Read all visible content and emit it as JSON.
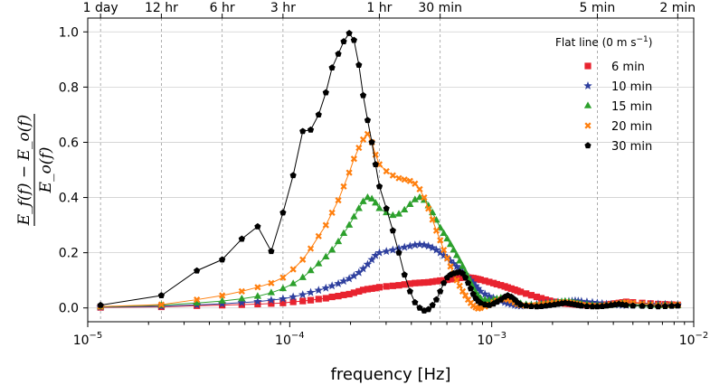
{
  "chart_data": {
    "type": "line",
    "xscale": "log",
    "xlim": [
      1e-05,
      0.01
    ],
    "ylim": [
      -0.05,
      1.05
    ],
    "xlabel": "frequency [Hz]",
    "ylabel_numerator": "E_f(f) − E_o(f)",
    "ylabel_denominator": "E_o(f)",
    "x_tick_labels": [
      {
        "value": 1e-05,
        "base": "10",
        "exp": "−5"
      },
      {
        "value": 0.0001,
        "base": "10",
        "exp": "−4"
      },
      {
        "value": 0.001,
        "base": "10",
        "exp": "−3"
      },
      {
        "value": 0.01,
        "base": "10",
        "exp": "−2"
      }
    ],
    "y_ticks": [
      0.0,
      0.2,
      0.4,
      0.6,
      0.8,
      1.0
    ],
    "y_tick_labels": [
      "0.0",
      "0.2",
      "0.4",
      "0.6",
      "0.8",
      "1.0"
    ],
    "top_axis": [
      {
        "label": "1 day",
        "value": 1.1574e-05
      },
      {
        "label": "12 hr",
        "value": 2.3148e-05
      },
      {
        "label": "6 hr",
        "value": 4.6296e-05
      },
      {
        "label": "3 hr",
        "value": 9.2593e-05
      },
      {
        "label": "1 hr",
        "value": 0.00027778
      },
      {
        "label": "30 min",
        "value": 0.00055556
      },
      {
        "label": "5 min",
        "value": 0.0033333
      },
      {
        "label": "2 min",
        "value": 0.0083333
      }
    ],
    "grid": "horizontal solid, vertical dashed at top-axis periods",
    "legend": {
      "title": "Flat line (0 m s",
      "title_sup": "−1",
      "title_close": ")",
      "placement": "top-right"
    },
    "series": [
      {
        "name": "6 min",
        "color": "#e8232f",
        "marker": "square",
        "x": [
          1.1574e-05,
          2.3148e-05,
          3.47e-05,
          4.63e-05,
          5.79e-05,
          6.94e-05,
          8.1e-05,
          9.26e-05,
          0.000104,
          0.000116,
          0.000127,
          0.000139,
          0.000151,
          0.000162,
          0.000174,
          0.000185,
          0.000197,
          0.000208,
          0.00022,
          0.000231,
          0.000243,
          0.000255,
          0.000266,
          0.000278,
          0.000301,
          0.000324,
          0.000347,
          0.00037,
          0.000394,
          0.000417,
          0.00044,
          0.000463,
          0.000486,
          0.000509,
          0.000532,
          0.000556,
          0.000579,
          0.000602,
          0.000625,
          0.000648,
          0.000671,
          0.000694,
          0.000718,
          0.000741,
          0.000764,
          0.000787,
          0.00081,
          0.000833,
          0.000856,
          0.00088,
          0.000926,
          0.000972,
          0.00102,
          0.00106,
          0.00111,
          0.00116,
          0.0012,
          0.00125,
          0.0013,
          0.00134,
          0.00139,
          0.00148,
          0.00157,
          0.00167,
          0.00176,
          0.00185,
          0.00194,
          0.00204,
          0.00213,
          0.00222,
          0.00231,
          0.00241,
          0.0025,
          0.00259,
          0.00268,
          0.00278,
          0.00296,
          0.00315,
          0.00333,
          0.00352,
          0.0037,
          0.00389,
          0.00407,
          0.00426,
          0.00444,
          0.00463,
          0.005,
          0.00556,
          0.00611,
          0.00667,
          0.00722,
          0.00778,
          0.00833
        ],
        "y": [
          0.002,
          0.004,
          0.008,
          0.01,
          0.012,
          0.014,
          0.016,
          0.018,
          0.022,
          0.025,
          0.028,
          0.032,
          0.035,
          0.04,
          0.043,
          0.047,
          0.05,
          0.055,
          0.06,
          0.065,
          0.068,
          0.07,
          0.072,
          0.075,
          0.078,
          0.08,
          0.082,
          0.085,
          0.088,
          0.09,
          0.091,
          0.092,
          0.093,
          0.095,
          0.097,
          0.099,
          0.1,
          0.102,
          0.104,
          0.106,
          0.108,
          0.109,
          0.11,
          0.111,
          0.11,
          0.109,
          0.108,
          0.106,
          0.104,
          0.102,
          0.098,
          0.094,
          0.09,
          0.086,
          0.082,
          0.078,
          0.074,
          0.07,
          0.066,
          0.062,
          0.058,
          0.052,
          0.046,
          0.04,
          0.035,
          0.03,
          0.026,
          0.022,
          0.02,
          0.018,
          0.016,
          0.015,
          0.014,
          0.013,
          0.012,
          0.011,
          0.01,
          0.01,
          0.01,
          0.011,
          0.012,
          0.014,
          0.016,
          0.018,
          0.02,
          0.022,
          0.02,
          0.018,
          0.016,
          0.014,
          0.013,
          0.012,
          0.011
        ]
      },
      {
        "name": "10 min",
        "color": "#2e3f9e",
        "marker": "star",
        "x": [
          1.1574e-05,
          2.3148e-05,
          3.47e-05,
          4.63e-05,
          5.79e-05,
          6.94e-05,
          8.1e-05,
          9.26e-05,
          0.000104,
          0.000116,
          0.000127,
          0.000139,
          0.000151,
          0.000162,
          0.000174,
          0.000185,
          0.000197,
          0.000208,
          0.00022,
          0.000231,
          0.000243,
          0.000255,
          0.000266,
          0.000278,
          0.000301,
          0.000324,
          0.000347,
          0.00037,
          0.000394,
          0.000417,
          0.00044,
          0.000463,
          0.000486,
          0.000509,
          0.000532,
          0.000556,
          0.000579,
          0.000602,
          0.000625,
          0.000648,
          0.000671,
          0.000694,
          0.000718,
          0.000741,
          0.000764,
          0.000787,
          0.00081,
          0.000833,
          0.000856,
          0.00088,
          0.000926,
          0.000972,
          0.00102,
          0.00106,
          0.00111,
          0.00116,
          0.0012,
          0.00125,
          0.0013,
          0.00134,
          0.00139,
          0.00148,
          0.00157,
          0.00167,
          0.00176,
          0.00185,
          0.00194,
          0.00204,
          0.00213,
          0.00222,
          0.00231,
          0.00241,
          0.0025,
          0.00259,
          0.00268,
          0.00278,
          0.00296,
          0.00315,
          0.00333,
          0.00352,
          0.0037,
          0.00389,
          0.00407,
          0.00426,
          0.00444,
          0.00463,
          0.005,
          0.00556,
          0.00611,
          0.00667,
          0.00722,
          0.00778,
          0.00833
        ],
        "y": [
          0.003,
          0.006,
          0.011,
          0.015,
          0.019,
          0.023,
          0.028,
          0.033,
          0.04,
          0.048,
          0.056,
          0.064,
          0.072,
          0.08,
          0.088,
          0.097,
          0.106,
          0.116,
          0.128,
          0.142,
          0.158,
          0.175,
          0.19,
          0.2,
          0.205,
          0.21,
          0.215,
          0.22,
          0.224,
          0.228,
          0.23,
          0.228,
          0.224,
          0.218,
          0.21,
          0.2,
          0.19,
          0.18,
          0.17,
          0.16,
          0.15,
          0.14,
          0.13,
          0.12,
          0.11,
          0.1,
          0.09,
          0.08,
          0.07,
          0.06,
          0.05,
          0.042,
          0.036,
          0.03,
          0.025,
          0.02,
          0.016,
          0.013,
          0.01,
          0.008,
          0.007,
          0.009,
          0.011,
          0.013,
          0.015,
          0.017,
          0.019,
          0.02,
          0.021,
          0.022,
          0.023,
          0.024,
          0.025,
          0.026,
          0.025,
          0.024,
          0.022,
          0.02,
          0.018,
          0.016,
          0.014,
          0.013,
          0.012,
          0.011,
          0.01,
          0.01,
          0.011,
          0.012,
          0.013,
          0.014,
          0.013,
          0.012,
          0.011
        ]
      },
      {
        "name": "15 min",
        "color": "#2ca02c",
        "marker": "triangle",
        "x": [
          1.1574e-05,
          2.3148e-05,
          3.47e-05,
          4.63e-05,
          5.79e-05,
          6.94e-05,
          8.1e-05,
          9.26e-05,
          0.000104,
          0.000116,
          0.000127,
          0.000139,
          0.000151,
          0.000162,
          0.000174,
          0.000185,
          0.000197,
          0.000208,
          0.00022,
          0.000231,
          0.000243,
          0.000255,
          0.000266,
          0.000278,
          0.000301,
          0.000324,
          0.000347,
          0.00037,
          0.000394,
          0.000417,
          0.00044,
          0.000463,
          0.000486,
          0.000509,
          0.000532,
          0.000556,
          0.000579,
          0.000602,
          0.000625,
          0.000648,
          0.000671,
          0.000694,
          0.000718,
          0.000741,
          0.000764,
          0.000787,
          0.00081,
          0.000833,
          0.000856,
          0.00088,
          0.000926,
          0.000972,
          0.00102,
          0.00106,
          0.00111,
          0.00116,
          0.0012,
          0.00125,
          0.0013,
          0.00134,
          0.00139,
          0.00148,
          0.00157,
          0.00167,
          0.00176,
          0.00185,
          0.00194,
          0.00204,
          0.00213,
          0.00222,
          0.00231,
          0.00241,
          0.0025,
          0.00259,
          0.00268,
          0.00278,
          0.00296,
          0.00315,
          0.00333,
          0.00352,
          0.0037,
          0.00389,
          0.00407,
          0.00426,
          0.00444,
          0.00463,
          0.005,
          0.00556,
          0.00611,
          0.00667,
          0.00722,
          0.00778,
          0.00833
        ],
        "y": [
          0.004,
          0.01,
          0.018,
          0.025,
          0.033,
          0.042,
          0.055,
          0.07,
          0.088,
          0.11,
          0.135,
          0.16,
          0.185,
          0.21,
          0.24,
          0.27,
          0.3,
          0.33,
          0.36,
          0.385,
          0.4,
          0.395,
          0.38,
          0.36,
          0.345,
          0.335,
          0.34,
          0.355,
          0.375,
          0.392,
          0.4,
          0.39,
          0.37,
          0.345,
          0.318,
          0.29,
          0.27,
          0.25,
          0.23,
          0.21,
          0.19,
          0.17,
          0.15,
          0.13,
          0.11,
          0.09,
          0.072,
          0.056,
          0.044,
          0.035,
          0.03,
          0.028,
          0.03,
          0.033,
          0.036,
          0.038,
          0.036,
          0.033,
          0.028,
          0.022,
          0.016,
          0.012,
          0.01,
          0.01,
          0.012,
          0.014,
          0.016,
          0.018,
          0.02,
          0.022,
          0.024,
          0.022,
          0.02,
          0.018,
          0.016,
          0.014,
          0.012,
          0.01,
          0.008,
          0.007,
          0.008,
          0.01,
          0.012,
          0.014,
          0.016,
          0.014,
          0.012,
          0.01,
          0.009,
          0.008,
          0.009,
          0.01,
          0.009
        ]
      },
      {
        "name": "20 min",
        "color": "#ff7f0e",
        "marker": "x",
        "x": [
          1.1574e-05,
          2.3148e-05,
          3.47e-05,
          4.63e-05,
          5.79e-05,
          6.94e-05,
          8.1e-05,
          9.26e-05,
          0.000104,
          0.000116,
          0.000127,
          0.000139,
          0.000151,
          0.000162,
          0.000174,
          0.000185,
          0.000197,
          0.000208,
          0.00022,
          0.000231,
          0.000243,
          0.000255,
          0.000266,
          0.000278,
          0.000301,
          0.000324,
          0.000347,
          0.00037,
          0.000394,
          0.000417,
          0.00044,
          0.000463,
          0.000486,
          0.000509,
          0.000532,
          0.000556,
          0.000579,
          0.000602,
          0.000625,
          0.000648,
          0.000671,
          0.000694,
          0.000718,
          0.000741,
          0.000764,
          0.000787,
          0.00081,
          0.000833,
          0.000856,
          0.00088,
          0.000926,
          0.000972,
          0.00102,
          0.00106,
          0.00111,
          0.00116,
          0.0012,
          0.00125,
          0.0013,
          0.00134,
          0.00139,
          0.00148,
          0.00157,
          0.00167,
          0.00176,
          0.00185,
          0.00194,
          0.00204,
          0.00213,
          0.00222,
          0.00231,
          0.00241,
          0.0025,
          0.00259,
          0.00268,
          0.00278,
          0.00296,
          0.00315,
          0.00333,
          0.00352,
          0.0037,
          0.00389,
          0.00407,
          0.00426,
          0.00444,
          0.00463,
          0.005,
          0.00556,
          0.00611,
          0.00667,
          0.00722,
          0.00778,
          0.00833
        ],
        "y": [
          0.005,
          0.012,
          0.03,
          0.045,
          0.06,
          0.075,
          0.09,
          0.11,
          0.14,
          0.175,
          0.215,
          0.26,
          0.3,
          0.345,
          0.39,
          0.44,
          0.49,
          0.54,
          0.58,
          0.61,
          0.63,
          0.6,
          0.555,
          0.52,
          0.495,
          0.48,
          0.47,
          0.465,
          0.46,
          0.45,
          0.43,
          0.4,
          0.36,
          0.32,
          0.28,
          0.245,
          0.21,
          0.18,
          0.15,
          0.125,
          0.1,
          0.08,
          0.06,
          0.045,
          0.03,
          0.018,
          0.008,
          0.002,
          -0.002,
          0.0,
          0.005,
          0.012,
          0.02,
          0.026,
          0.03,
          0.032,
          0.03,
          0.026,
          0.02,
          0.014,
          0.01,
          0.008,
          0.009,
          0.011,
          0.013,
          0.015,
          0.017,
          0.018,
          0.019,
          0.02,
          0.021,
          0.02,
          0.018,
          0.016,
          0.014,
          0.012,
          0.01,
          0.008,
          0.007,
          0.008,
          0.01,
          0.012,
          0.014,
          0.016,
          0.018,
          0.02,
          0.018,
          0.015,
          0.012,
          0.01,
          0.009,
          0.01,
          0.011
        ]
      },
      {
        "name": "30 min",
        "color": "#000000",
        "marker": "pentagon",
        "x": [
          1.1574e-05,
          2.3148e-05,
          3.47e-05,
          4.63e-05,
          5.79e-05,
          6.94e-05,
          8.1e-05,
          9.26e-05,
          0.000104,
          0.000116,
          0.000127,
          0.000139,
          0.000151,
          0.000162,
          0.000174,
          0.000185,
          0.000197,
          0.000208,
          0.00022,
          0.000231,
          0.000243,
          0.000255,
          0.000266,
          0.000278,
          0.000301,
          0.000324,
          0.000347,
          0.00037,
          0.000394,
          0.000417,
          0.00044,
          0.000463,
          0.000486,
          0.000509,
          0.000532,
          0.000556,
          0.000579,
          0.000602,
          0.000625,
          0.000648,
          0.000671,
          0.000694,
          0.000718,
          0.000741,
          0.000764,
          0.000787,
          0.00081,
          0.000833,
          0.000856,
          0.00088,
          0.000926,
          0.000972,
          0.00102,
          0.00106,
          0.00111,
          0.00116,
          0.0012,
          0.00125,
          0.0013,
          0.00134,
          0.00139,
          0.00148,
          0.00157,
          0.00167,
          0.00176,
          0.00185,
          0.00194,
          0.00204,
          0.00213,
          0.00222,
          0.00231,
          0.00241,
          0.0025,
          0.00259,
          0.00268,
          0.00278,
          0.00296,
          0.00315,
          0.00333,
          0.00352,
          0.0037,
          0.00389,
          0.00407,
          0.00426,
          0.00444,
          0.00463,
          0.005,
          0.00556,
          0.00611,
          0.00667,
          0.00722,
          0.00778,
          0.00833
        ],
        "y": [
          0.01,
          0.045,
          0.135,
          0.175,
          0.25,
          0.295,
          0.205,
          0.345,
          0.48,
          0.64,
          0.645,
          0.7,
          0.78,
          0.87,
          0.92,
          0.965,
          0.995,
          0.97,
          0.88,
          0.77,
          0.68,
          0.6,
          0.52,
          0.44,
          0.36,
          0.28,
          0.2,
          0.12,
          0.06,
          0.02,
          0.0,
          -0.01,
          -0.005,
          0.01,
          0.03,
          0.06,
          0.09,
          0.11,
          0.12,
          0.125,
          0.128,
          0.13,
          0.125,
          0.11,
          0.09,
          0.07,
          0.05,
          0.035,
          0.025,
          0.018,
          0.012,
          0.01,
          0.015,
          0.022,
          0.03,
          0.04,
          0.045,
          0.04,
          0.03,
          0.02,
          0.012,
          0.008,
          0.006,
          0.005,
          0.006,
          0.008,
          0.01,
          0.012,
          0.014,
          0.016,
          0.018,
          0.016,
          0.014,
          0.012,
          0.01,
          0.008,
          0.006,
          0.005,
          0.005,
          0.006,
          0.008,
          0.01,
          0.012,
          0.014,
          0.012,
          0.01,
          0.008,
          0.007,
          0.006,
          0.005,
          0.006,
          0.007,
          0.008
        ]
      }
    ]
  }
}
